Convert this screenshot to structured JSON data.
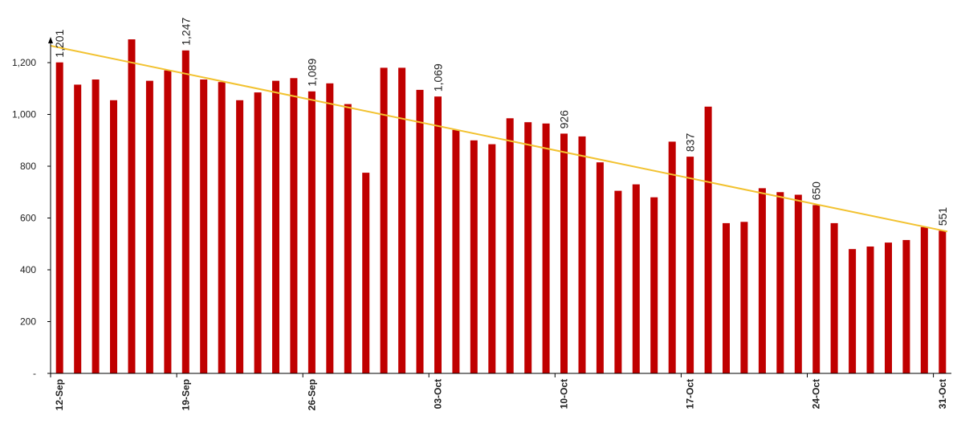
{
  "chart_data": {
    "type": "bar",
    "title": "",
    "xlabel": "",
    "ylabel": "",
    "ylim": [
      0,
      1300
    ],
    "y_ticks": [
      {
        "value": 0,
        "label": "-"
      },
      {
        "value": 200,
        "label": "200"
      },
      {
        "value": 400,
        "label": "400"
      },
      {
        "value": 600,
        "label": "600"
      },
      {
        "value": 800,
        "label": "800"
      },
      {
        "value": 1000,
        "label": "1,000"
      },
      {
        "value": 1200,
        "label": "1,200"
      }
    ],
    "x_tick_labels": [
      {
        "index": 0,
        "label": "12-Sep"
      },
      {
        "index": 7,
        "label": "19-Sep"
      },
      {
        "index": 14,
        "label": "26-Sep"
      },
      {
        "index": 21,
        "label": "03-Oct"
      },
      {
        "index": 28,
        "label": "10-Oct"
      },
      {
        "index": 35,
        "label": "17-Oct"
      },
      {
        "index": 42,
        "label": "24-Oct"
      },
      {
        "index": 49,
        "label": "31-Oct"
      }
    ],
    "values": [
      1201,
      1115,
      1135,
      1055,
      1290,
      1130,
      1170,
      1247,
      1135,
      1125,
      1055,
      1085,
      1130,
      1140,
      1089,
      1120,
      1040,
      775,
      1180,
      1180,
      1095,
      1069,
      940,
      900,
      885,
      985,
      970,
      965,
      926,
      915,
      815,
      705,
      730,
      680,
      895,
      837,
      1030,
      580,
      585,
      715,
      700,
      690,
      650,
      580,
      480,
      490,
      505,
      515,
      565,
      551
    ],
    "data_labels": [
      {
        "index": 0,
        "label": "1,201"
      },
      {
        "index": 7,
        "label": "1,247"
      },
      {
        "index": 14,
        "label": "1,089"
      },
      {
        "index": 21,
        "label": "1,069"
      },
      {
        "index": 28,
        "label": "926"
      },
      {
        "index": 35,
        "label": "837"
      },
      {
        "index": 42,
        "label": "650"
      },
      {
        "index": 49,
        "label": "551"
      }
    ],
    "trendline": {
      "start": 1265,
      "end": 548
    },
    "colors": {
      "bar": "#c00000",
      "trendline": "#f2c230",
      "axis": "#000000",
      "text": "#222222"
    },
    "grid": false,
    "legend": "none"
  }
}
